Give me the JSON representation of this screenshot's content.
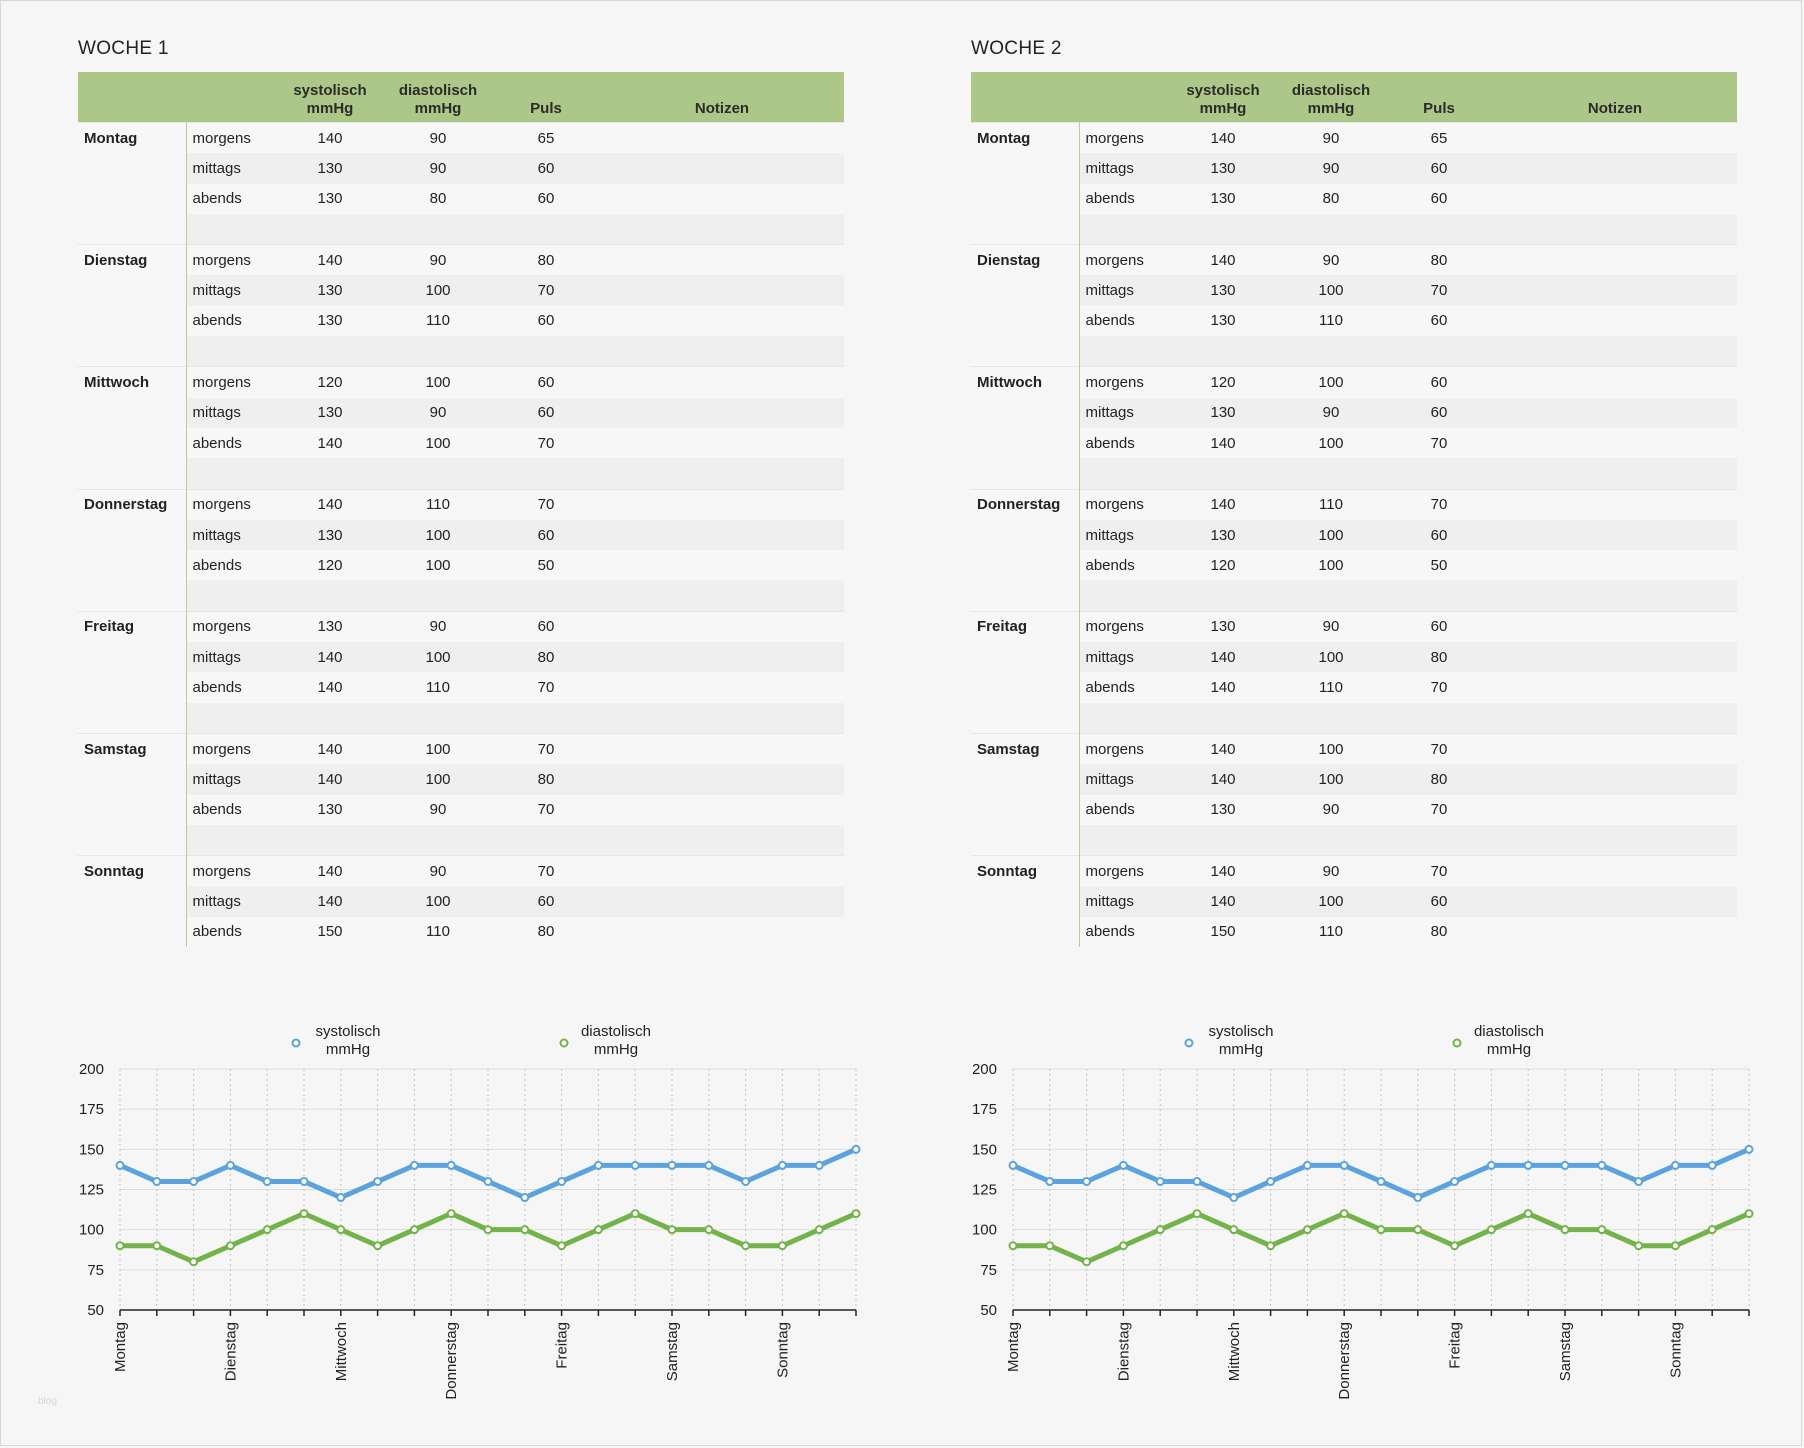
{
  "headers": {
    "day": "",
    "time": "",
    "systolic": "systolisch mmHg",
    "diastolic": "diastolisch mmHg",
    "pulse": "Puls",
    "notes": "Notizen"
  },
  "weeks": [
    {
      "title": "WOCHE 1",
      "days": [
        {
          "name": "Montag",
          "readings": [
            {
              "time": "morgens",
              "sys": "140",
              "dia": "90",
              "pulse": "65"
            },
            {
              "time": "mittags",
              "sys": "130",
              "dia": "90",
              "pulse": "60"
            },
            {
              "time": "abends",
              "sys": "130",
              "dia": "80",
              "pulse": "60"
            }
          ]
        },
        {
          "name": "Dienstag",
          "readings": [
            {
              "time": "morgens",
              "sys": "140",
              "dia": "90",
              "pulse": "80"
            },
            {
              "time": "mittags",
              "sys": "130",
              "dia": "100",
              "pulse": "70"
            },
            {
              "time": "abends",
              "sys": "130",
              "dia": "110",
              "pulse": "60"
            }
          ]
        },
        {
          "name": "Mittwoch",
          "readings": [
            {
              "time": "morgens",
              "sys": "120",
              "dia": "100",
              "pulse": "60"
            },
            {
              "time": "mittags",
              "sys": "130",
              "dia": "90",
              "pulse": "60"
            },
            {
              "time": "abends",
              "sys": "140",
              "dia": "100",
              "pulse": "70"
            }
          ]
        },
        {
          "name": "Donnerstag",
          "readings": [
            {
              "time": "morgens",
              "sys": "140",
              "dia": "110",
              "pulse": "70"
            },
            {
              "time": "mittags",
              "sys": "130",
              "dia": "100",
              "pulse": "60"
            },
            {
              "time": "abends",
              "sys": "120",
              "dia": "100",
              "pulse": "50"
            }
          ]
        },
        {
          "name": "Freitag",
          "readings": [
            {
              "time": "morgens",
              "sys": "130",
              "dia": "90",
              "pulse": "60"
            },
            {
              "time": "mittags",
              "sys": "140",
              "dia": "100",
              "pulse": "80"
            },
            {
              "time": "abends",
              "sys": "140",
              "dia": "110",
              "pulse": "70"
            }
          ]
        },
        {
          "name": "Samstag",
          "readings": [
            {
              "time": "morgens",
              "sys": "140",
              "dia": "100",
              "pulse": "70"
            },
            {
              "time": "mittags",
              "sys": "140",
              "dia": "100",
              "pulse": "80"
            },
            {
              "time": "abends",
              "sys": "130",
              "dia": "90",
              "pulse": "70"
            }
          ]
        },
        {
          "name": "Sonntag",
          "readings": [
            {
              "time": "morgens",
              "sys": "140",
              "dia": "90",
              "pulse": "70"
            },
            {
              "time": "mittags",
              "sys": "140",
              "dia": "100",
              "pulse": "60"
            },
            {
              "time": "abends",
              "sys": "150",
              "dia": "110",
              "pulse": "80"
            }
          ]
        }
      ]
    },
    {
      "title": "WOCHE 2",
      "days": [
        {
          "name": "Montag",
          "readings": [
            {
              "time": "morgens",
              "sys": "140",
              "dia": "90",
              "pulse": "65"
            },
            {
              "time": "mittags",
              "sys": "130",
              "dia": "90",
              "pulse": "60"
            },
            {
              "time": "abends",
              "sys": "130",
              "dia": "80",
              "pulse": "60"
            }
          ]
        },
        {
          "name": "Dienstag",
          "readings": [
            {
              "time": "morgens",
              "sys": "140",
              "dia": "90",
              "pulse": "80"
            },
            {
              "time": "mittags",
              "sys": "130",
              "dia": "100",
              "pulse": "70"
            },
            {
              "time": "abends",
              "sys": "130",
              "dia": "110",
              "pulse": "60"
            }
          ]
        },
        {
          "name": "Mittwoch",
          "readings": [
            {
              "time": "morgens",
              "sys": "120",
              "dia": "100",
              "pulse": "60"
            },
            {
              "time": "mittags",
              "sys": "130",
              "dia": "90",
              "pulse": "60"
            },
            {
              "time": "abends",
              "sys": "140",
              "dia": "100",
              "pulse": "70"
            }
          ]
        },
        {
          "name": "Donnerstag",
          "readings": [
            {
              "time": "morgens",
              "sys": "140",
              "dia": "110",
              "pulse": "70"
            },
            {
              "time": "mittags",
              "sys": "130",
              "dia": "100",
              "pulse": "60"
            },
            {
              "time": "abends",
              "sys": "120",
              "dia": "100",
              "pulse": "50"
            }
          ]
        },
        {
          "name": "Freitag",
          "readings": [
            {
              "time": "morgens",
              "sys": "130",
              "dia": "90",
              "pulse": "60"
            },
            {
              "time": "mittags",
              "sys": "140",
              "dia": "100",
              "pulse": "80"
            },
            {
              "time": "abends",
              "sys": "140",
              "dia": "110",
              "pulse": "70"
            }
          ]
        },
        {
          "name": "Samstag",
          "readings": [
            {
              "time": "morgens",
              "sys": "140",
              "dia": "100",
              "pulse": "70"
            },
            {
              "time": "mittags",
              "sys": "140",
              "dia": "100",
              "pulse": "80"
            },
            {
              "time": "abends",
              "sys": "130",
              "dia": "90",
              "pulse": "70"
            }
          ]
        },
        {
          "name": "Sonntag",
          "readings": [
            {
              "time": "morgens",
              "sys": "140",
              "dia": "90",
              "pulse": "70"
            },
            {
              "time": "mittags",
              "sys": "140",
              "dia": "100",
              "pulse": "60"
            },
            {
              "time": "abends",
              "sys": "150",
              "dia": "110",
              "pulse": "80"
            }
          ]
        }
      ]
    }
  ],
  "chart_data": [
    {
      "type": "line",
      "categories": [
        "Montag",
        "",
        "",
        "Dienstag",
        "",
        "",
        "Mittwoch",
        "",
        "",
        "Donnerstag",
        "",
        "",
        "Freitag",
        "",
        "",
        "Samstag",
        "",
        "",
        "Sonntag",
        "",
        ""
      ],
      "series": [
        {
          "name": "systolisch mmHg",
          "color": "#5ba3de",
          "values": [
            140,
            130,
            130,
            140,
            130,
            130,
            120,
            130,
            140,
            140,
            130,
            120,
            130,
            140,
            140,
            140,
            140,
            130,
            140,
            140,
            150
          ]
        },
        {
          "name": "diastolisch mmHg",
          "color": "#73b349",
          "values": [
            90,
            90,
            80,
            90,
            100,
            110,
            100,
            90,
            100,
            110,
            100,
            100,
            90,
            100,
            110,
            100,
            100,
            90,
            90,
            100,
            110
          ]
        }
      ],
      "yticks": [
        "200",
        "175",
        "150",
        "125",
        "100",
        "75",
        "50"
      ],
      "ylim": [
        50,
        200
      ],
      "legend": "top",
      "grid": true
    },
    {
      "type": "line",
      "categories": [
        "Montag",
        "",
        "",
        "Dienstag",
        "",
        "",
        "Mittwoch",
        "",
        "",
        "Donnerstag",
        "",
        "",
        "Freitag",
        "",
        "",
        "Samstag",
        "",
        "",
        "Sonntag",
        "",
        ""
      ],
      "series": [
        {
          "name": "systolisch mmHg",
          "color": "#5ba3de",
          "values": [
            140,
            130,
            130,
            140,
            130,
            130,
            120,
            130,
            140,
            140,
            130,
            120,
            130,
            140,
            140,
            140,
            140,
            130,
            140,
            140,
            150
          ]
        },
        {
          "name": "diastolisch mmHg",
          "color": "#73b349",
          "values": [
            90,
            90,
            80,
            90,
            100,
            110,
            100,
            90,
            100,
            110,
            100,
            100,
            90,
            100,
            110,
            100,
            100,
            90,
            90,
            100,
            110
          ]
        }
      ],
      "yticks": [
        "200",
        "175",
        "150",
        "125",
        "100",
        "75",
        "50"
      ],
      "ylim": [
        50,
        200
      ],
      "legend": "top",
      "grid": true
    }
  ],
  "watermark": "blog"
}
